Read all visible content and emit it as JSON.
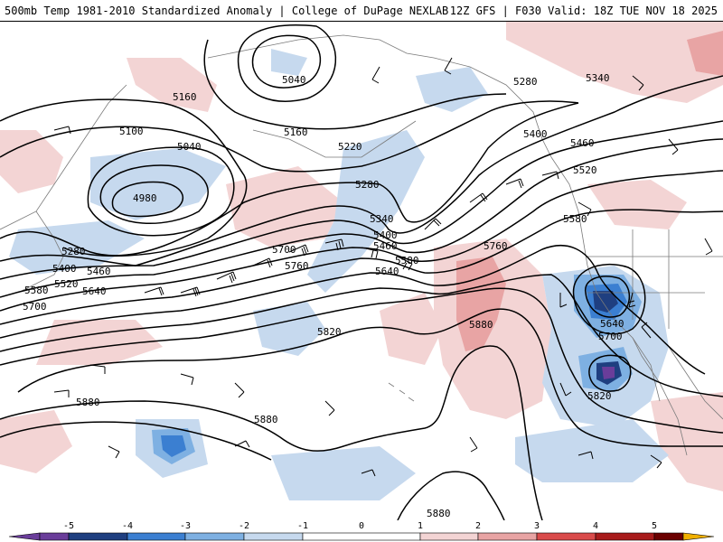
{
  "header": {
    "title_left": "500mb Temp 1981-2010 Standardized Anomaly | College of DuPage NEXLAB",
    "title_right": "12Z GFS | F030 Valid: 18Z TUE NOV 18 2025"
  },
  "colors": {
    "neg5": "#6a3d9a",
    "neg4": "#1f3f80",
    "neg3": "#3b7fd1",
    "neg2": "#7eb0e2",
    "neg1": "#c6d9ee",
    "zero": "#ffffff",
    "pos1": "#f3d4d4",
    "pos2": "#e8a4a4",
    "pos3": "#d94b4b",
    "pos4": "#a81b1b",
    "pos5": "#6b0000",
    "pos6": "#f0b000",
    "contour": "#000000",
    "coast": "#7a7a7a"
  },
  "colorbar": {
    "ticks": [
      "-5",
      "-4",
      "-3",
      "-2",
      "-1",
      "0",
      "1",
      "2",
      "3",
      "4",
      "5"
    ]
  },
  "contour_labels": {
    "l5040_top": "5040",
    "l5160_top": "5160",
    "l5100": "5100",
    "l5040_left": "5040",
    "l4980": "4980",
    "l5160_mid": "5160",
    "l5220": "5220",
    "l5280_mid": "5280",
    "l5280_left": "5280",
    "l5280_right": "5280",
    "l5340_right": "5340",
    "l5400_right": "5400",
    "l5460_right": "5460",
    "l5520_right": "5520",
    "l5580_right": "5580",
    "l5340_mid": "5340",
    "l5400_mid": "5400",
    "l5460_mid": "5460",
    "l5580_mid": "5580",
    "l5640_mid": "5640",
    "l5760_right": "5760",
    "l5700_left": "5700",
    "l5760_left": "5760",
    "l5400_left": "5400",
    "l5460_left": "5460",
    "l5520_left": "5520",
    "l5580_left": "5580",
    "l5640_left": "5640",
    "l5700_far": "5700",
    "l5820_mid": "5820",
    "l5880_mid": "5880",
    "l5880_left": "5880",
    "l5880_bottom": "5880",
    "l5880_bottom2": "5880",
    "l5640_low": "5640",
    "l5700_low": "5700",
    "l5820_low": "5820"
  }
}
